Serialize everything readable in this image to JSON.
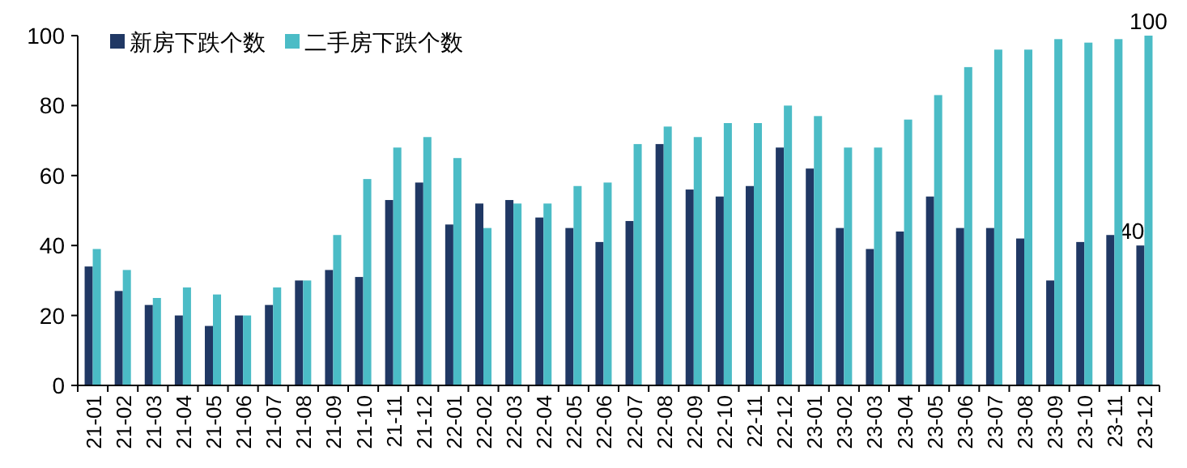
{
  "chart_data": {
    "type": "bar",
    "categories": [
      "21-01",
      "21-02",
      "21-03",
      "21-04",
      "21-05",
      "21-06",
      "21-07",
      "21-08",
      "21-09",
      "21-10",
      "21-11",
      "21-12",
      "22-01",
      "22-02",
      "22-03",
      "22-04",
      "22-05",
      "22-06",
      "22-07",
      "22-08",
      "22-09",
      "22-10",
      "22-11",
      "22-12",
      "23-01",
      "23-02",
      "23-03",
      "23-04",
      "23-05",
      "23-06",
      "23-07",
      "23-08",
      "23-09",
      "23-10",
      "23-11",
      "23-12"
    ],
    "series": [
      {
        "name": "新房下跌个数",
        "color": "#203864",
        "values": [
          34,
          27,
          23,
          20,
          17,
          20,
          23,
          30,
          33,
          31,
          53,
          58,
          46,
          52,
          53,
          48,
          45,
          41,
          47,
          69,
          56,
          54,
          57,
          68,
          62,
          45,
          39,
          44,
          54,
          45,
          45,
          42,
          30,
          41,
          43,
          40
        ],
        "value_labels": [
          null,
          null,
          null,
          null,
          null,
          null,
          null,
          null,
          null,
          null,
          null,
          null,
          null,
          null,
          null,
          null,
          null,
          null,
          null,
          null,
          null,
          null,
          null,
          null,
          null,
          null,
          null,
          null,
          null,
          null,
          null,
          null,
          null,
          null,
          null,
          "40"
        ]
      },
      {
        "name": "二手房下跌个数",
        "color": "#4bbcc6",
        "values": [
          39,
          33,
          25,
          28,
          26,
          20,
          28,
          30,
          43,
          59,
          68,
          71,
          65,
          45,
          52,
          52,
          57,
          58,
          69,
          74,
          71,
          75,
          75,
          80,
          77,
          68,
          68,
          76,
          83,
          91,
          96,
          96,
          99,
          98,
          99,
          100
        ],
        "value_labels": [
          null,
          null,
          null,
          null,
          null,
          null,
          null,
          null,
          null,
          null,
          null,
          null,
          null,
          null,
          null,
          null,
          null,
          null,
          null,
          null,
          null,
          null,
          null,
          null,
          null,
          null,
          null,
          null,
          null,
          null,
          null,
          null,
          null,
          null,
          null,
          "100"
        ]
      }
    ],
    "ylim": [
      0,
      100
    ],
    "yticks": [
      0,
      20,
      40,
      60,
      80,
      100
    ],
    "grid": false,
    "legend": "top left"
  }
}
